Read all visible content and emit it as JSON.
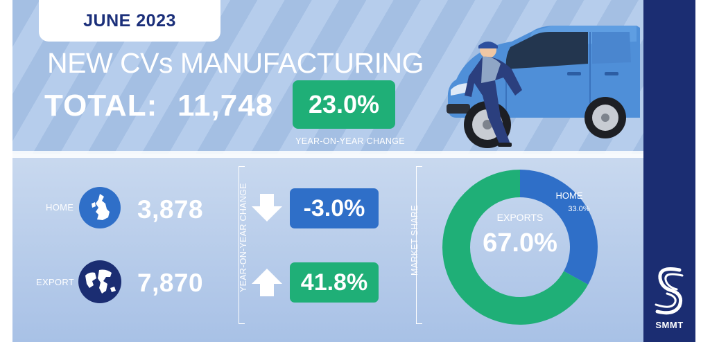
{
  "date": "JUNE 2023",
  "headline": "NEW CVs MANUFACTURING",
  "total": {
    "label": "TOTAL:",
    "value": "11,748"
  },
  "yoy": {
    "value": "23.0%",
    "caption": "YEAR-ON-YEAR CHANGE"
  },
  "rows": [
    {
      "label": "HOME",
      "value": "3,878",
      "change": "-3.0%",
      "direction": "down",
      "color": "#2f6fc8"
    },
    {
      "label": "EXPORT",
      "value": "7,870",
      "change": "41.8%",
      "direction": "up",
      "color": "#1faf77"
    }
  ],
  "change_axis_label": "YEAR-ON-YEAR CHANGE",
  "share_axis_label": "MARKET SHARE",
  "brand": "SMMT",
  "colors": {
    "navy": "#1b2d72",
    "green": "#1faf77",
    "blue": "#2f6fc8",
    "background": "#a9c4e6"
  },
  "chart_data": {
    "type": "pie",
    "title": "",
    "series": [
      {
        "name": "EXPORTS",
        "value": 67.0,
        "label": "67.0%",
        "color": "#1faf77"
      },
      {
        "name": "HOME",
        "value": 33.0,
        "label": "33.0%",
        "color": "#2f6fc8"
      }
    ],
    "donut": true
  }
}
